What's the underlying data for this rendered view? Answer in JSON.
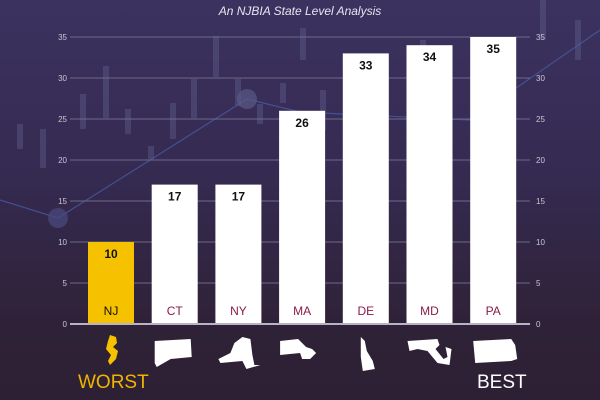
{
  "chart_data": {
    "type": "bar",
    "title": "An NJBIA State Level Analysis",
    "categories": [
      "NJ",
      "CT",
      "NY",
      "MA",
      "DE",
      "MD",
      "PA"
    ],
    "values": [
      10,
      17,
      17,
      26,
      33,
      34,
      35
    ],
    "ylim": [
      0,
      35
    ],
    "yticks": [
      0,
      5,
      10,
      15,
      20,
      25,
      30,
      35
    ],
    "xlabel": "",
    "ylabel": "",
    "grid": true,
    "highlight_color": "#f6c200",
    "bar_color": "#ffffff",
    "label_color": "#8a1a4a",
    "scale_labels": {
      "worst": "WORST",
      "best": "BEST"
    }
  }
}
